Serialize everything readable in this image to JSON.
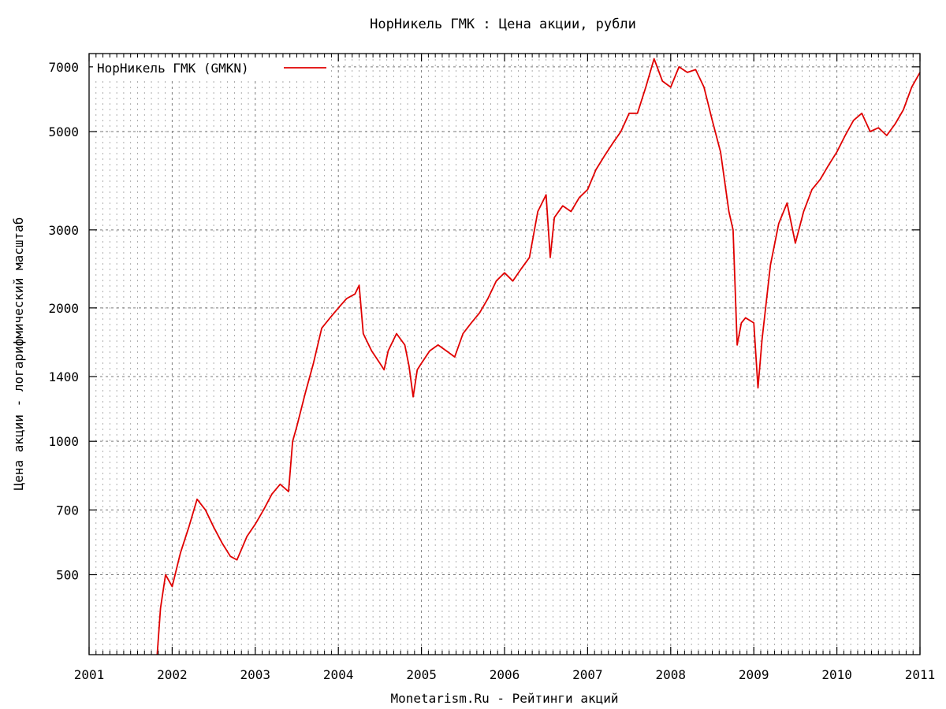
{
  "chart_data": {
    "type": "line",
    "title": "НорНикель ГМК : Цена акции, рубли",
    "xlabel": "Monetarism.Ru - Рейтинги акций",
    "ylabel": "Цена акции - логарифмический масштаб",
    "y_scale": "log",
    "xlim": [
      2001,
      2011
    ],
    "ylim": [
      330,
      7500
    ],
    "x_ticks": [
      "2001",
      "2002",
      "2003",
      "2004",
      "2005",
      "2006",
      "2007",
      "2008",
      "2009",
      "2010",
      "2011"
    ],
    "y_ticks": [
      "500",
      "700",
      "1000",
      "1400",
      "2000",
      "3000",
      "5000",
      "7000"
    ],
    "grid": true,
    "legend_position": "top-left",
    "series": [
      {
        "name": "НорНикель ГМК (GMKN)",
        "color": "#e00000",
        "x": [
          2001.82,
          2001.86,
          2001.92,
          2002.0,
          2002.1,
          2002.2,
          2002.3,
          2002.4,
          2002.5,
          2002.6,
          2002.7,
          2002.78,
          2002.9,
          2003.0,
          2003.1,
          2003.2,
          2003.3,
          2003.4,
          2003.45,
          2003.5,
          2003.6,
          2003.7,
          2003.8,
          2003.9,
          2004.0,
          2004.1,
          2004.2,
          2004.25,
          2004.3,
          2004.4,
          2004.5,
          2004.55,
          2004.6,
          2004.7,
          2004.8,
          2004.85,
          2004.9,
          2004.95,
          2005.0,
          2005.1,
          2005.2,
          2005.3,
          2005.4,
          2005.5,
          2005.6,
          2005.7,
          2005.8,
          2005.9,
          2006.0,
          2006.1,
          2006.2,
          2006.3,
          2006.4,
          2006.5,
          2006.55,
          2006.6,
          2006.7,
          2006.8,
          2006.9,
          2007.0,
          2007.1,
          2007.2,
          2007.3,
          2007.4,
          2007.5,
          2007.6,
          2007.7,
          2007.8,
          2007.9,
          2008.0,
          2008.1,
          2008.2,
          2008.3,
          2008.4,
          2008.5,
          2008.6,
          2008.7,
          2008.75,
          2008.8,
          2008.85,
          2008.9,
          2009.0,
          2009.05,
          2009.1,
          2009.2,
          2009.3,
          2009.4,
          2009.5,
          2009.6,
          2009.7,
          2009.8,
          2009.9,
          2010.0,
          2010.1,
          2010.2,
          2010.3,
          2010.4,
          2010.5,
          2010.6,
          2010.7,
          2010.8,
          2010.9,
          2011.0
        ],
        "y": [
          330,
          420,
          500,
          470,
          560,
          640,
          740,
          700,
          640,
          590,
          550,
          540,
          610,
          650,
          700,
          760,
          800,
          770,
          1000,
          1080,
          1280,
          1500,
          1800,
          1900,
          2000,
          2100,
          2150,
          2250,
          1750,
          1600,
          1500,
          1450,
          1600,
          1750,
          1650,
          1480,
          1260,
          1450,
          1500,
          1600,
          1650,
          1600,
          1550,
          1750,
          1850,
          1950,
          2100,
          2300,
          2400,
          2300,
          2450,
          2600,
          3300,
          3600,
          2600,
          3200,
          3400,
          3300,
          3550,
          3700,
          4100,
          4400,
          4700,
          5000,
          5500,
          5500,
          6300,
          7300,
          6500,
          6300,
          7000,
          6800,
          6900,
          6300,
          5300,
          4500,
          3300,
          3000,
          1650,
          1850,
          1900,
          1850,
          1320,
          1700,
          2500,
          3100,
          3450,
          2800,
          3300,
          3700,
          3900,
          4200,
          4500,
          4900,
          5300,
          5500,
          5000,
          5100,
          4900,
          5200,
          5600,
          6300,
          6800
        ]
      }
    ]
  }
}
